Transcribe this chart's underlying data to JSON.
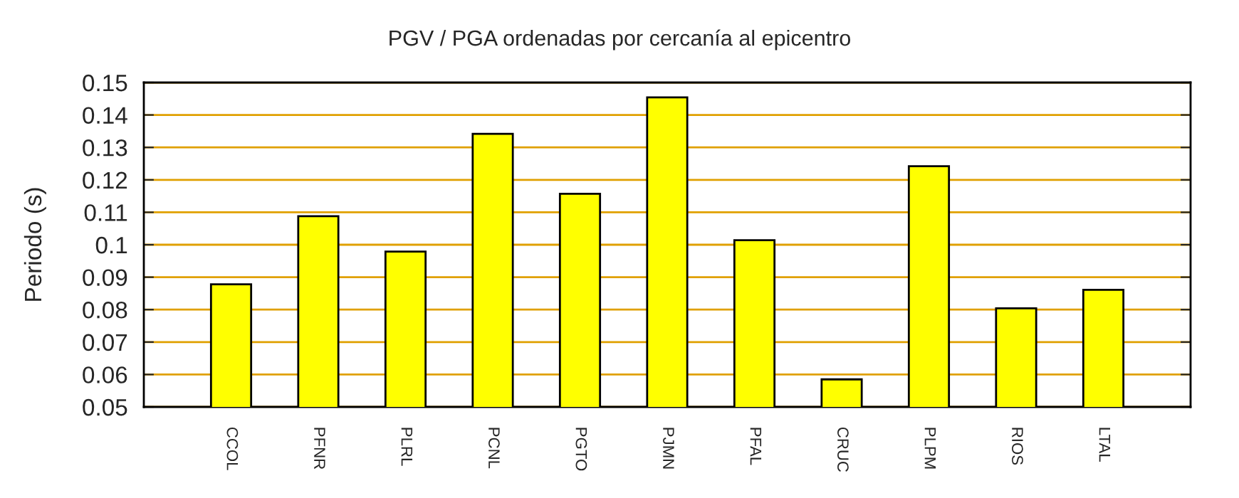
{
  "chart_data": {
    "type": "bar",
    "title": "PGV / PGA ordenadas por cercanía al epicentro",
    "ylabel": "Periodo (s)",
    "categories": [
      "CCOL",
      "PFNR",
      "PLRL",
      "PCNL",
      "PGTO",
      "PJMN",
      "PFAL",
      "CRUC",
      "PLPM",
      "RIOS",
      "LTAL"
    ],
    "values": [
      0.0878,
      0.1088,
      0.0979,
      0.1342,
      0.1157,
      0.1454,
      0.1014,
      0.0585,
      0.1242,
      0.0804,
      0.0861
    ],
    "color": "#ffff00",
    "ylim": [
      0.05,
      0.15
    ],
    "yticks": [
      0.05,
      0.06,
      0.07,
      0.08,
      0.09,
      0.1,
      0.11,
      0.12,
      0.13,
      0.14,
      0.15
    ],
    "grid": "y",
    "legend": false
  }
}
